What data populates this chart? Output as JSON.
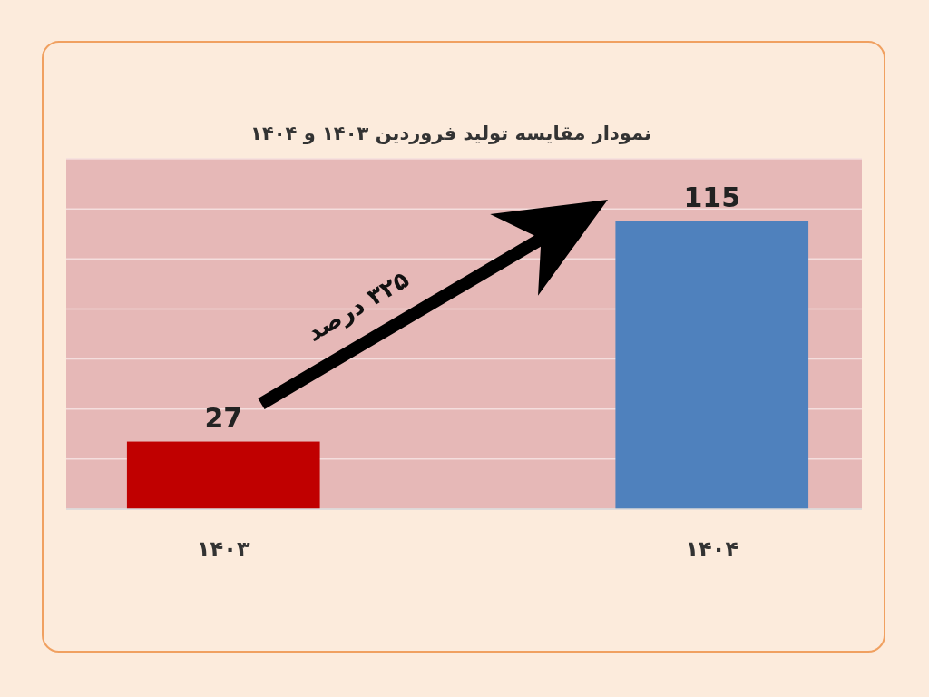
{
  "chart_data": {
    "type": "bar",
    "title": "نمودار  مقایسه تولید فروردین ۱۴۰۳ و ۱۴۰۴",
    "categories": [
      "۱۴۰۳",
      "۱۴۰۴"
    ],
    "values": [
      27,
      115
    ],
    "colors": [
      "#c00000",
      "#4f81bd"
    ],
    "ylim": [
      0,
      140
    ],
    "yticks": [
      {
        "value": 0,
        "label": null
      },
      {
        "value": 20,
        "label": null
      },
      {
        "value": 40,
        "label": null
      },
      {
        "value": 60,
        "label": null
      },
      {
        "value": 80,
        "label": null
      },
      {
        "value": 100,
        "label": null
      },
      {
        "value": 120,
        "label": null
      },
      {
        "value": 140,
        "label": null
      }
    ],
    "grid": "y",
    "tick_labels": "x",
    "data_labels": true,
    "annotations": [
      "۳۲۵ درصد"
    ]
  }
}
